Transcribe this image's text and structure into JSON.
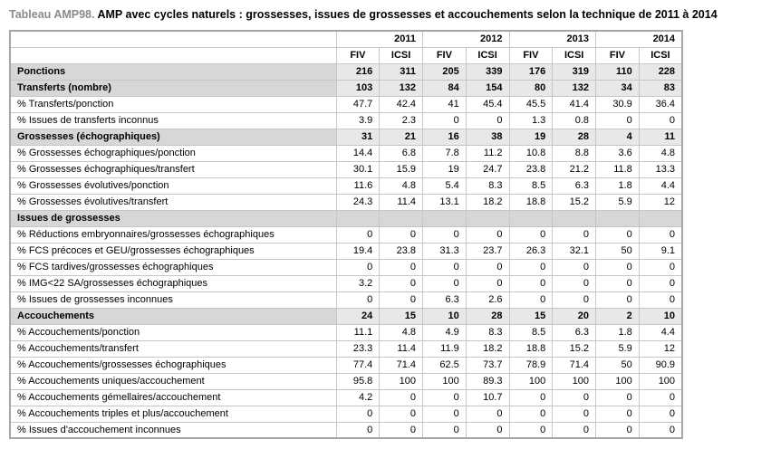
{
  "caption": {
    "prefix": "Tableau AMP98.",
    "text": "AMP avec cycles naturels : grossesses, issues de grossesses et accouchements selon la technique de 2011 à 2014"
  },
  "colors": {
    "caption_prefix": "#8a8a8a",
    "section_label_bg": "#d7d7d7",
    "section_value_bg": "#e8e8e8",
    "grid_border": "#c6c6c6",
    "outer_border": "#a6a6a6"
  },
  "chart_data": {
    "type": "table",
    "title": "Tableau AMP98. AMP avec cycles naturels : grossesses, issues de grossesses et accouchements selon la technique de 2011 à 2014",
    "year_groups": [
      "2011",
      "2012",
      "2013",
      "2014"
    ],
    "technique_headers": [
      "FIV",
      "ICSI",
      "FIV",
      "ICSI",
      "FIV",
      "ICSI",
      "FIV",
      "ICSI"
    ],
    "rows": [
      {
        "label": "Ponctions",
        "type": "section",
        "values": [
          "216",
          "311",
          "205",
          "339",
          "176",
          "319",
          "110",
          "228"
        ]
      },
      {
        "label": "Transferts (nombre)",
        "type": "section",
        "values": [
          "103",
          "132",
          "84",
          "154",
          "80",
          "132",
          "34",
          "83"
        ]
      },
      {
        "label": "% Transferts/ponction",
        "type": "data",
        "values": [
          "47.7",
          "42.4",
          "41",
          "45.4",
          "45.5",
          "41.4",
          "30.9",
          "36.4"
        ]
      },
      {
        "label": "% Issues de transferts inconnus",
        "type": "data",
        "values": [
          "3.9",
          "2.3",
          "0",
          "0",
          "1.3",
          "0.8",
          "0",
          "0"
        ]
      },
      {
        "label": "Grossesses (échographiques)",
        "type": "section",
        "values": [
          "31",
          "21",
          "16",
          "38",
          "19",
          "28",
          "4",
          "11"
        ]
      },
      {
        "label": "% Grossesses échographiques/ponction",
        "type": "data",
        "values": [
          "14.4",
          "6.8",
          "7.8",
          "11.2",
          "10.8",
          "8.8",
          "3.6",
          "4.8"
        ]
      },
      {
        "label": "% Grossesses échographiques/transfert",
        "type": "data",
        "values": [
          "30.1",
          "15.9",
          "19",
          "24.7",
          "23.8",
          "21.2",
          "11.8",
          "13.3"
        ]
      },
      {
        "label": "% Grossesses évolutives/ponction",
        "type": "data",
        "values": [
          "11.6",
          "4.8",
          "5.4",
          "8.3",
          "8.5",
          "6.3",
          "1.8",
          "4.4"
        ]
      },
      {
        "label": "% Grossesses évolutives/transfert",
        "type": "data",
        "values": [
          "24.3",
          "11.4",
          "13.1",
          "18.2",
          "18.8",
          "15.2",
          "5.9",
          "12"
        ]
      },
      {
        "label": "Issues de grossesses",
        "type": "section-empty",
        "values": [
          "",
          "",
          "",
          "",
          "",
          "",
          "",
          ""
        ]
      },
      {
        "label": "% Réductions embryonnaires/grossesses échographiques",
        "type": "data",
        "values": [
          "0",
          "0",
          "0",
          "0",
          "0",
          "0",
          "0",
          "0"
        ]
      },
      {
        "label": "% FCS précoces et GEU/grossesses échographiques",
        "type": "data",
        "values": [
          "19.4",
          "23.8",
          "31.3",
          "23.7",
          "26.3",
          "32.1",
          "50",
          "9.1"
        ]
      },
      {
        "label": "% FCS tardives/grossesses échographiques",
        "type": "data",
        "values": [
          "0",
          "0",
          "0",
          "0",
          "0",
          "0",
          "0",
          "0"
        ]
      },
      {
        "label": "% IMG<22 SA/grossesses échographiques",
        "type": "data",
        "values": [
          "3.2",
          "0",
          "0",
          "0",
          "0",
          "0",
          "0",
          "0"
        ]
      },
      {
        "label": "% Issues de grossesses inconnues",
        "type": "data",
        "values": [
          "0",
          "0",
          "6.3",
          "2.6",
          "0",
          "0",
          "0",
          "0"
        ]
      },
      {
        "label": "Accouchements",
        "type": "section",
        "values": [
          "24",
          "15",
          "10",
          "28",
          "15",
          "20",
          "2",
          "10"
        ]
      },
      {
        "label": "% Accouchements/ponction",
        "type": "data",
        "values": [
          "11.1",
          "4.8",
          "4.9",
          "8.3",
          "8.5",
          "6.3",
          "1.8",
          "4.4"
        ]
      },
      {
        "label": "% Accouchements/transfert",
        "type": "data",
        "values": [
          "23.3",
          "11.4",
          "11.9",
          "18.2",
          "18.8",
          "15.2",
          "5.9",
          "12"
        ]
      },
      {
        "label": "% Accouchements/grossesses échographiques",
        "type": "data",
        "values": [
          "77.4",
          "71.4",
          "62.5",
          "73.7",
          "78.9",
          "71.4",
          "50",
          "90.9"
        ]
      },
      {
        "label": "% Accouchements uniques/accouchement",
        "type": "data",
        "values": [
          "95.8",
          "100",
          "100",
          "89.3",
          "100",
          "100",
          "100",
          "100"
        ]
      },
      {
        "label": "% Accouchements gémellaires/accouchement",
        "type": "data",
        "values": [
          "4.2",
          "0",
          "0",
          "10.7",
          "0",
          "0",
          "0",
          "0"
        ]
      },
      {
        "label": "% Accouchements triples et plus/accouchement",
        "type": "data",
        "values": [
          "0",
          "0",
          "0",
          "0",
          "0",
          "0",
          "0",
          "0"
        ]
      },
      {
        "label": "% Issues d'accouchement inconnues",
        "type": "data",
        "values": [
          "0",
          "0",
          "0",
          "0",
          "0",
          "0",
          "0",
          "0"
        ]
      }
    ]
  }
}
